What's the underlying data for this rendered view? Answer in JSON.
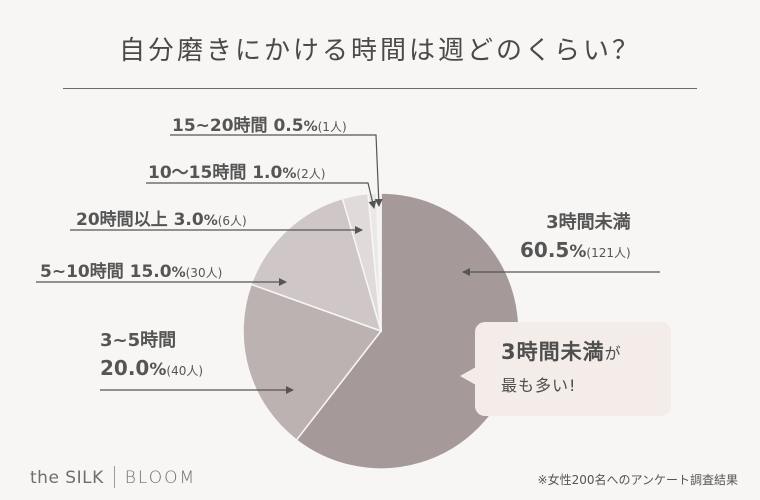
{
  "title": "自分磨きにかける時間は週どのくらい？",
  "chart_data": {
    "type": "pie",
    "title": "自分磨きにかける時間は週どのくらい？",
    "unit": "%",
    "slices": [
      {
        "label": "3時間未満",
        "value": 60.5,
        "count": "(121人)",
        "color": "#a6999a"
      },
      {
        "label": "3~5時間",
        "value": 20.0,
        "count": "(40人)",
        "color": "#bcb2b2"
      },
      {
        "label": "5~10時間",
        "value": 15.0,
        "count": "(30人)",
        "color": "#cfc7c7"
      },
      {
        "label": "20時間以上",
        "value": 3.0,
        "count": "(6人)",
        "color": "#e0dada"
      },
      {
        "label": "10～15時間",
        "value": 1.0,
        "count": "(2人)",
        "color": "#ebe7e7"
      },
      {
        "label": "15~20時間",
        "value": 0.5,
        "count": "(1人)",
        "color": "#f4f2f2"
      }
    ]
  },
  "labels": {
    "l0_name": "3時間未満",
    "l0_pct": "60.5",
    "l0_sym": "%",
    "l0_cnt": "(121人)",
    "l1_name": "3~5時間",
    "l1_pct": "20.0",
    "l1_sym": "%",
    "l1_cnt": "(40人)",
    "l2_text": "5~10時間 15.0",
    "l2_sym": "%",
    "l2_cnt": "(30人)",
    "l3_text": "20時間以上 3.0",
    "l3_sym": "%",
    "l3_cnt": "(6人)",
    "l4_text": "10～15時間 1.0",
    "l4_sym": "%",
    "l4_cnt": "(2人)",
    "l5_text": "15~20時間 0.5",
    "l5_sym": "%",
    "l5_cnt": "(1人)"
  },
  "callout": {
    "line1": "3時間未満",
    "line1_suffix": "が",
    "line2": "最も多い!"
  },
  "logo": {
    "left": "the SILK",
    "right": "BLOOM"
  },
  "note": "※女性200名へのアンケート調査結果"
}
